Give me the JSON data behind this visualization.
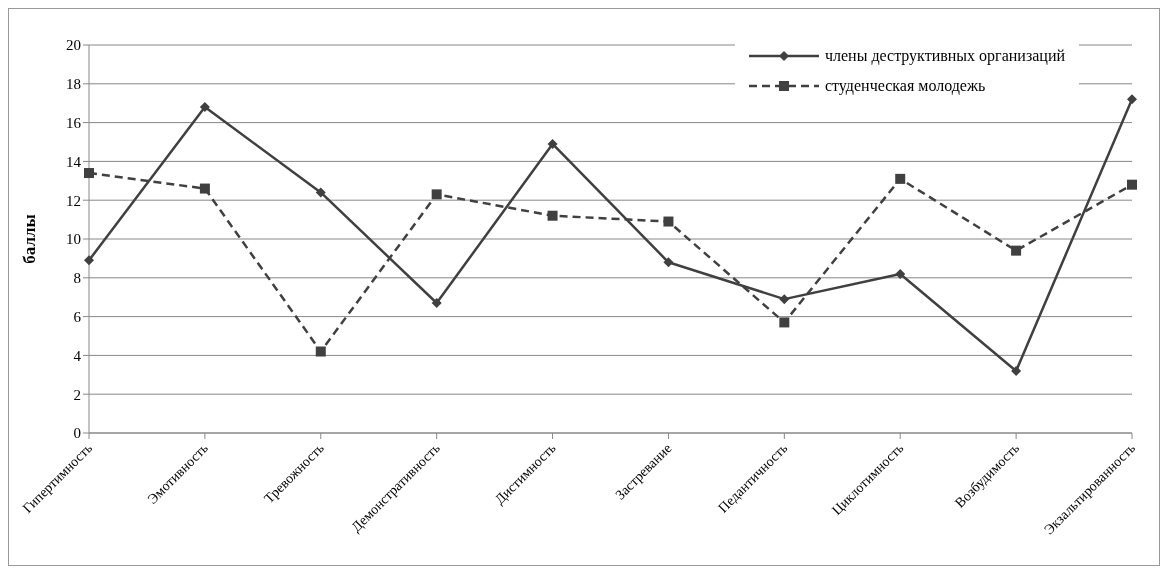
{
  "chart_data": {
    "type": "line",
    "ylabel": "баллы",
    "categories": [
      "Гипертимность",
      "Эмотивность",
      "Тревожность",
      "Демонстративность",
      "Дистимность",
      "Застревание",
      "Педантичность",
      "Циклотимность",
      "Возбудимость",
      "Экзальтированность"
    ],
    "series": [
      {
        "name": "члены деструктивных организаций",
        "color": "#404040",
        "marker": "diamond",
        "line_style": "solid",
        "values": [
          8.9,
          16.8,
          12.4,
          6.7,
          14.9,
          8.8,
          6.9,
          8.2,
          3.2,
          17.2
        ]
      },
      {
        "name": "студенческая молодежь",
        "color": "#404040",
        "marker": "square",
        "line_style": "dashed",
        "values": [
          13.4,
          12.6,
          4.2,
          12.3,
          11.2,
          10.9,
          5.7,
          13.1,
          9.4,
          12.8
        ]
      }
    ],
    "ylim": [
      0,
      20
    ],
    "yticks": [
      0,
      2,
      4,
      6,
      8,
      10,
      12,
      14,
      16,
      18,
      20
    ],
    "grid": "y",
    "legend": "top right"
  }
}
